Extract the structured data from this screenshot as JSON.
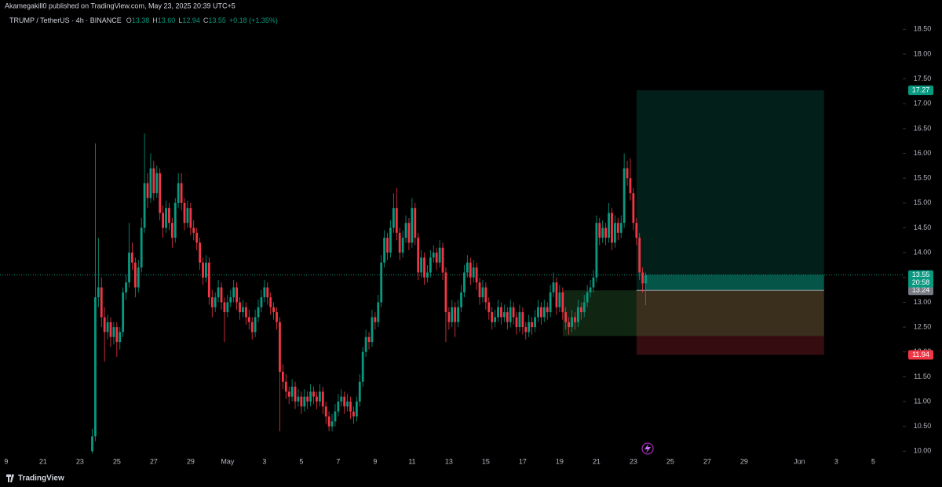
{
  "header": {
    "publisher": "Akamegakill0 published on TradingView.com, May 23, 2025 20:39 UTC+5"
  },
  "chart_data": {
    "type": "candlestick",
    "symbol": "TRUMP / TetherUS · 4h · BINANCE",
    "legend": [
      {
        "label": "O",
        "value": "13.38"
      },
      {
        "label": "H",
        "value": "13.60"
      },
      {
        "label": "L",
        "value": "12.94"
      },
      {
        "label": "C",
        "value": "13.55"
      }
    ],
    "change": "+0.18 (+1.35%)",
    "countdown": "20:58",
    "up_color": "#089981",
    "down_color": "#f23645",
    "xlim": [
      -2,
      291.6
    ],
    "ylim": [
      9.8,
      18.9
    ],
    "xticks": [
      {
        "value": 0,
        "label": "9"
      },
      {
        "value": 12,
        "label": "21"
      },
      {
        "value": 24,
        "label": "23"
      },
      {
        "value": 36,
        "label": "25"
      },
      {
        "value": 48,
        "label": "27"
      },
      {
        "value": 60,
        "label": "29"
      },
      {
        "value": 72,
        "label": "May"
      },
      {
        "value": 84,
        "label": "3"
      },
      {
        "value": 96,
        "label": "5"
      },
      {
        "value": 108,
        "label": "7"
      },
      {
        "value": 120,
        "label": "9"
      },
      {
        "value": 132,
        "label": "11"
      },
      {
        "value": 144,
        "label": "13"
      },
      {
        "value": 156,
        "label": "15"
      },
      {
        "value": 168,
        "label": "17"
      },
      {
        "value": 180,
        "label": "19"
      },
      {
        "value": 192,
        "label": "21"
      },
      {
        "value": 204,
        "label": "23"
      },
      {
        "value": 216,
        "label": "25"
      },
      {
        "value": 228,
        "label": "27"
      },
      {
        "value": 240,
        "label": "29"
      },
      {
        "value": 258,
        "label": "Jun"
      },
      {
        "value": 270,
        "label": "3"
      },
      {
        "value": 282,
        "label": "5"
      }
    ],
    "yticks": [
      {
        "value": 10,
        "label": "10.00"
      },
      {
        "value": 10.5,
        "label": "10.50"
      },
      {
        "value": 11,
        "label": "11.00"
      },
      {
        "value": 11.5,
        "label": "11.50"
      },
      {
        "value": 12,
        "label": "12.00"
      },
      {
        "value": 12.5,
        "label": "12.50"
      },
      {
        "value": 13,
        "label": "13.00"
      },
      {
        "value": 13.5,
        "label": "13.50"
      },
      {
        "value": 14,
        "label": "14.00"
      },
      {
        "value": 14.5,
        "label": "14.50"
      },
      {
        "value": 15,
        "label": "15.00"
      },
      {
        "value": 15.5,
        "label": "15.50"
      },
      {
        "value": 16,
        "label": "16.00"
      },
      {
        "value": 16.5,
        "label": "16.50"
      },
      {
        "value": 17,
        "label": "17.00"
      },
      {
        "value": 17.5,
        "label": "17.50"
      },
      {
        "value": 18,
        "label": "18.00"
      },
      {
        "value": 18.5,
        "label": "18.50"
      }
    ],
    "position": {
      "target": 17.27,
      "entry": 13.24,
      "stop": 11.94,
      "start_x": 205,
      "end_x": 266
    },
    "zone": {
      "top": 13.24,
      "bottom": 12.32,
      "start_x": 181,
      "end_x": 266
    },
    "x": [
      28,
      29,
      30,
      31,
      32,
      33,
      34,
      35,
      36,
      37,
      38,
      39,
      40,
      41,
      42,
      43,
      44,
      45,
      46,
      47,
      48,
      49,
      50,
      51,
      52,
      53,
      54,
      55,
      56,
      57,
      58,
      59,
      60,
      61,
      62,
      63,
      64,
      65,
      66,
      67,
      68,
      69,
      70,
      71,
      72,
      73,
      74,
      75,
      76,
      77,
      78,
      79,
      80,
      81,
      82,
      83,
      84,
      85,
      86,
      87,
      88,
      89,
      90,
      91,
      92,
      93,
      94,
      95,
      96,
      97,
      98,
      99,
      100,
      101,
      102,
      103,
      104,
      105,
      106,
      107,
      108,
      109,
      110,
      111,
      112,
      113,
      114,
      115,
      116,
      117,
      118,
      119,
      120,
      121,
      122,
      123,
      124,
      125,
      126,
      127,
      128,
      129,
      130,
      131,
      132,
      133,
      134,
      135,
      136,
      137,
      138,
      139,
      140,
      141,
      142,
      143,
      144,
      145,
      146,
      147,
      148,
      149,
      150,
      151,
      152,
      153,
      154,
      155,
      156,
      157,
      158,
      159,
      160,
      161,
      162,
      163,
      164,
      165,
      166,
      167,
      168,
      169,
      170,
      171,
      172,
      173,
      174,
      175,
      176,
      177,
      178,
      179,
      180,
      181,
      182,
      183,
      184,
      185,
      186,
      187,
      188,
      189,
      190,
      191,
      192,
      193,
      194,
      195,
      196,
      197,
      198,
      199,
      200,
      201,
      202,
      203,
      204,
      205,
      206,
      207,
      208
    ],
    "open": [
      10.0,
      10.3,
      13.1,
      13.3,
      12.7,
      12.4,
      12.6,
      12.3,
      12.5,
      12.2,
      12.4,
      13.2,
      13.4,
      14.0,
      13.8,
      13.3,
      13.7,
      14.5,
      15.4,
      15.1,
      15.7,
      15.2,
      15.6,
      14.8,
      14.5,
      14.9,
      14.6,
      14.3,
      15.0,
      15.4,
      15.0,
      14.6,
      14.9,
      14.5,
      14.4,
      14.2,
      13.8,
      13.5,
      13.8,
      13.1,
      12.9,
      13.1,
      13.3,
      13.0,
      12.8,
      13.0,
      13.1,
      13.3,
      13.0,
      12.8,
      12.9,
      12.7,
      12.6,
      12.4,
      12.7,
      12.9,
      13.1,
      13.3,
      13.1,
      12.9,
      12.8,
      12.6,
      11.6,
      11.4,
      11.2,
      11.1,
      11.3,
      11.0,
      11.1,
      10.9,
      11.1,
      11.0,
      11.2,
      11.1,
      11.0,
      11.2,
      10.9,
      10.7,
      10.5,
      10.6,
      10.8,
      11.0,
      11.1,
      10.9,
      11.0,
      10.8,
      10.7,
      11.0,
      11.4,
      12.0,
      12.3,
      12.2,
      12.7,
      12.6,
      13.0,
      13.8,
      14.3,
      14.0,
      14.5,
      14.9,
      14.4,
      14.0,
      14.3,
      14.6,
      14.2,
      14.9,
      14.3,
      13.6,
      13.9,
      13.5,
      13.6,
      13.9,
      14.0,
      13.8,
      14.1,
      13.6,
      12.8,
      12.6,
      12.9,
      12.6,
      12.9,
      13.2,
      13.6,
      13.8,
      13.5,
      13.7,
      13.4,
      13.1,
      13.3,
      13.0,
      12.8,
      12.6,
      12.7,
      12.9,
      12.7,
      12.8,
      12.6,
      12.9,
      12.7,
      12.5,
      12.8,
      12.5,
      12.4,
      12.6,
      12.5,
      12.7,
      12.9,
      12.7,
      12.9,
      12.8,
      13.2,
      13.4,
      12.9,
      13.2,
      12.8,
      12.6,
      12.5,
      12.7,
      12.6,
      12.9,
      12.8,
      13.0,
      13.2,
      13.3,
      13.5,
      14.6,
      14.3,
      14.5,
      14.3,
      14.8,
      14.2,
      14.6,
      14.4,
      14.6,
      15.7,
      15.5,
      15.2,
      14.6,
      14.3,
      13.6,
      13.38
    ],
    "high": [
      10.45,
      16.2,
      14.3,
      13.5,
      12.9,
      12.75,
      12.7,
      12.6,
      12.6,
      12.5,
      13.3,
      13.55,
      14.6,
      14.2,
      13.9,
      13.85,
      14.7,
      16.4,
      15.6,
      16.0,
      15.85,
      15.75,
      15.7,
      14.95,
      15.05,
      15.0,
      14.7,
      15.1,
      15.6,
      15.6,
      15.1,
      15.05,
      15.0,
      14.65,
      14.5,
      14.3,
      13.9,
      13.95,
      13.9,
      13.25,
      13.2,
      13.45,
      13.4,
      13.1,
      13.15,
      13.25,
      13.45,
      13.4,
      13.1,
      13.05,
      13.0,
      12.85,
      12.7,
      12.85,
      13.05,
      13.25,
      13.45,
      13.4,
      13.2,
      13.0,
      12.9,
      12.7,
      11.75,
      11.55,
      11.3,
      11.45,
      11.4,
      11.25,
      11.2,
      11.25,
      11.2,
      11.35,
      11.3,
      11.2,
      11.35,
      11.3,
      11.0,
      10.8,
      10.75,
      10.95,
      11.15,
      11.25,
      11.2,
      11.15,
      11.1,
      10.9,
      11.1,
      11.55,
      12.1,
      12.45,
      12.4,
      12.85,
      12.8,
      13.15,
      13.95,
      14.45,
      14.4,
      14.65,
      15.2,
      15.3,
      14.5,
      14.45,
      14.75,
      14.7,
      15.1,
      15.0,
      14.4,
      14.05,
      14.0,
      13.75,
      14.05,
      14.15,
      14.1,
      14.25,
      14.2,
      13.7,
      12.9,
      13.05,
      13.0,
      13.05,
      13.35,
      13.75,
      13.95,
      13.9,
      13.85,
      13.8,
      13.5,
      13.45,
      13.4,
      13.1,
      12.9,
      12.85,
      13.05,
      13.0,
      12.95,
      12.9,
      13.05,
      13.0,
      12.8,
      12.95,
      12.9,
      12.6,
      12.75,
      12.7,
      12.85,
      13.05,
      13.0,
      13.05,
      13.0,
      13.35,
      13.6,
      13.5,
      13.35,
      13.3,
      12.9,
      12.7,
      12.85,
      12.8,
      13.05,
      13.0,
      13.15,
      13.35,
      13.45,
      13.65,
      14.75,
      14.7,
      14.65,
      14.6,
      15.0,
      14.9,
      14.75,
      14.7,
      14.75,
      16.0,
      15.85,
      15.9,
      15.3,
      14.7,
      14.4,
      13.7,
      13.6
    ],
    "low": [
      9.95,
      10.2,
      12.9,
      12.5,
      11.8,
      12.25,
      12.1,
      12.15,
      11.9,
      12.05,
      12.3,
      13.05,
      13.3,
      13.65,
      13.1,
      13.2,
      13.6,
      14.4,
      14.9,
      15.0,
      15.05,
      15.1,
      14.65,
      14.3,
      14.4,
      14.45,
      14.1,
      14.2,
      14.9,
      14.85,
      14.45,
      14.5,
      14.35,
      14.25,
      14.05,
      13.65,
      13.35,
      13.4,
      12.95,
      12.7,
      12.8,
      13.0,
      12.85,
      12.2,
      12.7,
      12.9,
      13.0,
      12.85,
      12.65,
      12.7,
      12.55,
      12.45,
      12.25,
      12.3,
      12.6,
      12.8,
      13.0,
      12.95,
      12.75,
      12.65,
      12.45,
      10.4,
      11.25,
      11.05,
      10.95,
      11.0,
      10.85,
      10.9,
      10.75,
      10.8,
      10.85,
      10.9,
      10.95,
      10.85,
      10.9,
      10.75,
      10.55,
      10.4,
      10.4,
      10.5,
      10.7,
      10.9,
      10.75,
      10.8,
      10.65,
      10.55,
      10.6,
      10.9,
      11.3,
      11.9,
      12.05,
      12.1,
      12.45,
      12.5,
      12.9,
      13.7,
      13.85,
      13.9,
      14.4,
      14.25,
      13.85,
      13.9,
      14.2,
      14.05,
      14.1,
      14.15,
      13.45,
      13.5,
      13.35,
      13.4,
      13.5,
      13.8,
      13.65,
      13.7,
      13.45,
      12.2,
      12.45,
      12.5,
      12.3,
      12.5,
      12.8,
      13.1,
      13.5,
      13.35,
      13.4,
      13.25,
      12.95,
      13.0,
      12.85,
      12.65,
      12.45,
      12.5,
      12.6,
      12.55,
      12.6,
      12.45,
      12.5,
      12.55,
      12.35,
      12.4,
      12.35,
      12.25,
      12.3,
      12.35,
      12.4,
      12.6,
      12.55,
      12.6,
      12.65,
      12.7,
      13.1,
      12.75,
      12.8,
      12.65,
      12.45,
      12.35,
      12.4,
      12.45,
      12.5,
      12.65,
      12.7,
      12.9,
      13.1,
      13.2,
      13.4,
      14.15,
      14.2,
      14.15,
      14.2,
      14.05,
      14.1,
      14.25,
      14.3,
      14.5,
      15.35,
      15.05,
      14.45,
      14.15,
      13.45,
      13.2,
      12.94
    ],
    "close": [
      10.3,
      13.1,
      13.3,
      12.7,
      12.4,
      12.6,
      12.3,
      12.5,
      12.2,
      12.4,
      13.2,
      13.4,
      14.0,
      13.8,
      13.3,
      13.7,
      14.5,
      15.4,
      15.1,
      15.7,
      15.2,
      15.6,
      14.8,
      14.5,
      14.9,
      14.6,
      14.3,
      15.0,
      15.4,
      15.0,
      14.6,
      14.9,
      14.5,
      14.4,
      14.2,
      13.8,
      13.5,
      13.8,
      13.1,
      12.9,
      13.1,
      13.3,
      13.0,
      12.8,
      13.0,
      13.1,
      13.3,
      13.0,
      12.8,
      12.9,
      12.7,
      12.6,
      12.4,
      12.7,
      12.9,
      13.1,
      13.3,
      13.1,
      12.9,
      12.8,
      12.6,
      11.6,
      11.4,
      11.2,
      11.1,
      11.3,
      11.0,
      11.1,
      10.9,
      11.1,
      11.0,
      11.2,
      11.1,
      11.0,
      11.2,
      10.9,
      10.7,
      10.5,
      10.6,
      10.8,
      11.0,
      11.1,
      10.9,
      11.0,
      10.8,
      10.7,
      11.0,
      11.4,
      12.0,
      12.3,
      12.2,
      12.7,
      12.6,
      13.0,
      13.8,
      14.3,
      14.0,
      14.5,
      14.9,
      14.4,
      14.0,
      14.3,
      14.6,
      14.2,
      14.9,
      14.3,
      13.6,
      13.9,
      13.5,
      13.6,
      13.9,
      14.0,
      13.8,
      14.1,
      13.6,
      12.8,
      12.6,
      12.9,
      12.6,
      12.9,
      13.2,
      13.6,
      13.8,
      13.5,
      13.7,
      13.4,
      13.1,
      13.3,
      13.0,
      12.8,
      12.6,
      12.7,
      12.9,
      12.7,
      12.8,
      12.6,
      12.9,
      12.7,
      12.5,
      12.8,
      12.5,
      12.4,
      12.6,
      12.5,
      12.7,
      12.9,
      12.7,
      12.9,
      12.8,
      13.2,
      13.4,
      12.9,
      13.2,
      12.8,
      12.6,
      12.5,
      12.7,
      12.6,
      12.9,
      12.8,
      13.0,
      13.2,
      13.3,
      13.5,
      14.6,
      14.3,
      14.5,
      14.3,
      14.8,
      14.2,
      14.6,
      14.4,
      14.6,
      15.7,
      15.5,
      15.2,
      14.6,
      14.3,
      13.6,
      13.38,
      13.55
    ]
  },
  "footer": {
    "brand": "TradingView"
  }
}
